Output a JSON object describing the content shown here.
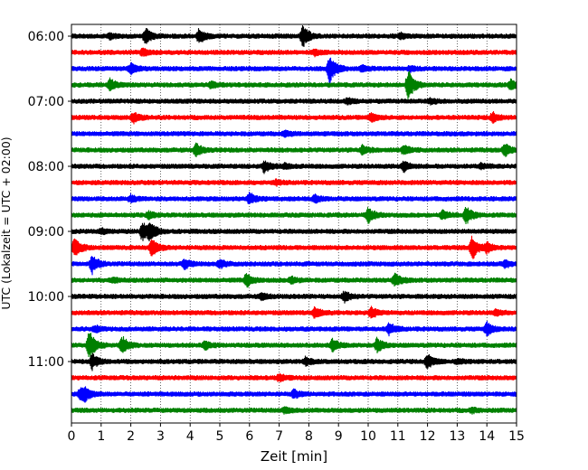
{
  "chart_data": {
    "type": "line",
    "title": "",
    "xlabel": "Zeit  [min]",
    "ylabel": "UTC (Lokalzeit = UTC + 02:00)",
    "xlim": [
      0,
      15
    ],
    "x_ticks": [
      "0",
      "1",
      "2",
      "3",
      "4",
      "5",
      "6",
      "7",
      "8",
      "9",
      "10",
      "11",
      "12",
      "13",
      "14",
      "15"
    ],
    "y_ticks": [
      "06:00",
      "07:00",
      "08:00",
      "09:00",
      "10:00",
      "11:00"
    ],
    "grid": "vertical dotted at each minute",
    "trace_interval_minutes": 15,
    "trace_colors": [
      "#000000",
      "#ff0000",
      "#0000ff",
      "#008000"
    ],
    "series": [
      {
        "start": "06:00",
        "color": "#000000",
        "events": [
          {
            "t": 2.5,
            "amp": 0.9
          },
          {
            "t": 4.3,
            "amp": 0.9
          },
          {
            "t": 7.8,
            "amp": 1.3
          },
          {
            "t": 1.3,
            "amp": 0.3
          },
          {
            "t": 11.1,
            "amp": 0.3
          }
        ]
      },
      {
        "start": "06:15",
        "color": "#ff0000",
        "events": [
          {
            "t": 2.4,
            "amp": 0.4
          },
          {
            "t": 8.2,
            "amp": 0.3
          }
        ]
      },
      {
        "start": "06:30",
        "color": "#0000ff",
        "events": [
          {
            "t": 2.0,
            "amp": 0.6
          },
          {
            "t": 8.7,
            "amp": 1.9
          },
          {
            "t": 9.8,
            "amp": 0.4
          },
          {
            "t": 11.4,
            "amp": 0.3
          }
        ]
      },
      {
        "start": "06:45",
        "color": "#008000",
        "events": [
          {
            "t": 1.3,
            "amp": 0.7
          },
          {
            "t": 4.7,
            "amp": 0.4
          },
          {
            "t": 11.35,
            "amp": 1.9
          },
          {
            "t": 14.8,
            "amp": 0.6
          }
        ]
      },
      {
        "start": "07:00",
        "color": "#000000",
        "events": [
          {
            "t": 9.3,
            "amp": 0.3
          },
          {
            "t": 12.1,
            "amp": 0.3
          }
        ]
      },
      {
        "start": "07:15",
        "color": "#ff0000",
        "events": [
          {
            "t": 2.1,
            "amp": 0.6
          },
          {
            "t": 10.1,
            "amp": 0.5
          },
          {
            "t": 14.2,
            "amp": 0.6
          }
        ]
      },
      {
        "start": "07:30",
        "color": "#0000ff",
        "events": [
          {
            "t": 7.2,
            "amp": 0.3
          }
        ]
      },
      {
        "start": "07:45",
        "color": "#008000",
        "events": [
          {
            "t": 4.2,
            "amp": 0.8
          },
          {
            "t": 9.8,
            "amp": 0.5
          },
          {
            "t": 11.2,
            "amp": 0.6
          },
          {
            "t": 14.6,
            "amp": 0.8
          }
        ]
      },
      {
        "start": "08:00",
        "color": "#000000",
        "events": [
          {
            "t": 6.5,
            "amp": 0.7
          },
          {
            "t": 11.2,
            "amp": 0.6
          },
          {
            "t": 7.2,
            "amp": 0.3
          },
          {
            "t": 13.8,
            "amp": 0.3
          }
        ]
      },
      {
        "start": "08:15",
        "color": "#ff0000",
        "events": [
          {
            "t": 6.9,
            "amp": 0.3
          }
        ]
      },
      {
        "start": "08:30",
        "color": "#0000ff",
        "events": [
          {
            "t": 2.0,
            "amp": 0.4
          },
          {
            "t": 6.0,
            "amp": 0.7
          },
          {
            "t": 8.2,
            "amp": 0.5
          }
        ]
      },
      {
        "start": "08:45",
        "color": "#008000",
        "events": [
          {
            "t": 2.6,
            "amp": 0.4
          },
          {
            "t": 10.0,
            "amp": 0.9
          },
          {
            "t": 12.5,
            "amp": 0.5
          },
          {
            "t": 13.3,
            "amp": 1.1
          }
        ]
      },
      {
        "start": "09:00",
        "color": "#000000",
        "events": [
          {
            "t": 2.4,
            "amp": 1.3
          },
          {
            "t": 2.65,
            "amp": 1.0
          },
          {
            "t": 1.0,
            "amp": 0.3
          }
        ]
      },
      {
        "start": "09:15",
        "color": "#ff0000",
        "events": [
          {
            "t": 0.1,
            "amp": 1.3
          },
          {
            "t": 2.7,
            "amp": 1.1
          },
          {
            "t": 13.5,
            "amp": 1.5
          },
          {
            "t": 14.0,
            "amp": 0.6
          }
        ]
      },
      {
        "start": "09:30",
        "color": "#0000ff",
        "events": [
          {
            "t": 0.7,
            "amp": 1.1
          },
          {
            "t": 3.8,
            "amp": 0.6
          },
          {
            "t": 5.0,
            "amp": 0.5
          },
          {
            "t": 14.6,
            "amp": 0.4
          }
        ]
      },
      {
        "start": "09:45",
        "color": "#008000",
        "events": [
          {
            "t": 1.4,
            "amp": 0.3
          },
          {
            "t": 5.9,
            "amp": 0.8
          },
          {
            "t": 7.4,
            "amp": 0.4
          },
          {
            "t": 10.9,
            "amp": 0.8
          }
        ]
      },
      {
        "start": "10:00",
        "color": "#000000",
        "events": [
          {
            "t": 6.4,
            "amp": 0.4
          },
          {
            "t": 9.2,
            "amp": 0.6
          }
        ]
      },
      {
        "start": "10:15",
        "color": "#ff0000",
        "events": [
          {
            "t": 8.2,
            "amp": 0.6
          },
          {
            "t": 10.1,
            "amp": 0.6
          },
          {
            "t": 14.3,
            "amp": 0.3
          }
        ]
      },
      {
        "start": "10:30",
        "color": "#0000ff",
        "events": [
          {
            "t": 0.8,
            "amp": 0.4
          },
          {
            "t": 10.7,
            "amp": 0.7
          },
          {
            "t": 14.0,
            "amp": 0.8
          }
        ]
      },
      {
        "start": "10:45",
        "color": "#008000",
        "events": [
          {
            "t": 0.6,
            "amp": 1.8
          },
          {
            "t": 1.7,
            "amp": 1.1
          },
          {
            "t": 4.5,
            "amp": 0.5
          },
          {
            "t": 8.8,
            "amp": 0.7
          },
          {
            "t": 10.3,
            "amp": 0.9
          }
        ]
      },
      {
        "start": "11:00",
        "color": "#000000",
        "events": [
          {
            "t": 0.7,
            "amp": 0.9
          },
          {
            "t": 7.9,
            "amp": 0.5
          },
          {
            "t": 12.0,
            "amp": 0.9
          },
          {
            "t": 13.0,
            "amp": 0.3
          }
        ]
      },
      {
        "start": "11:15",
        "color": "#ff0000",
        "events": [
          {
            "t": 7.0,
            "amp": 0.4
          }
        ]
      },
      {
        "start": "11:30",
        "color": "#0000ff",
        "events": [
          {
            "t": 0.3,
            "amp": 0.7
          },
          {
            "t": 0.45,
            "amp": 0.7
          },
          {
            "t": 7.5,
            "amp": 0.5
          }
        ]
      },
      {
        "start": "11:45",
        "color": "#008000",
        "events": [
          {
            "t": 7.2,
            "amp": 0.4
          },
          {
            "t": 13.5,
            "amp": 0.3
          }
        ]
      }
    ]
  }
}
